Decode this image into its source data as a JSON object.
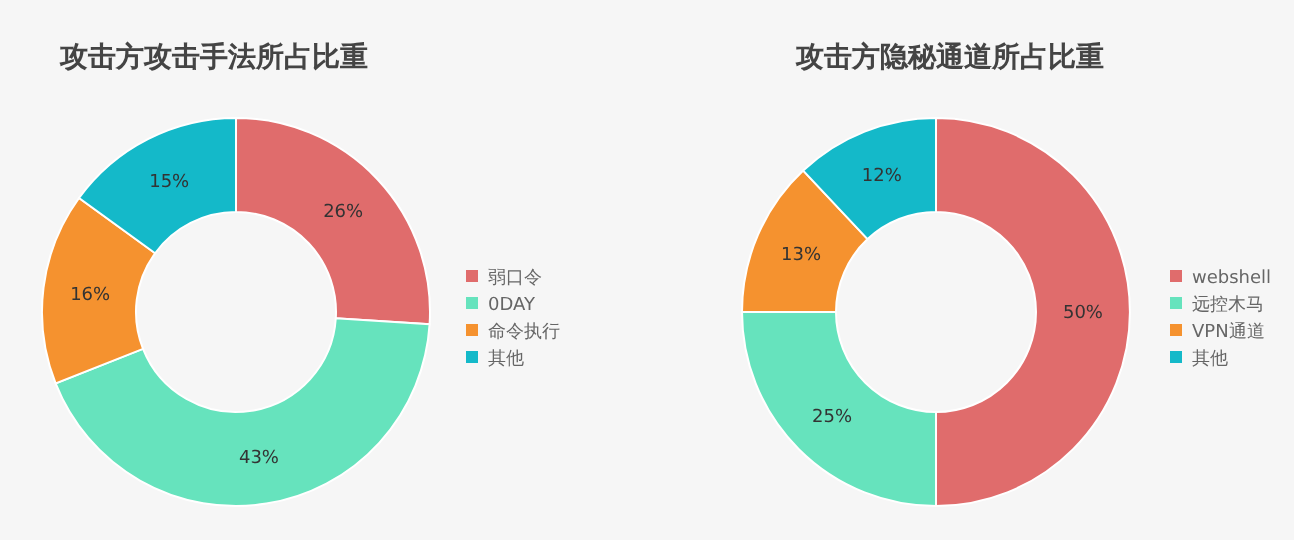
{
  "chart_data": [
    {
      "type": "donut",
      "title": "攻击方攻击手法所占比重",
      "categories": [
        "弱口令",
        "0DAY",
        "命令执行",
        "其他"
      ],
      "values": [
        26,
        43,
        16,
        15
      ],
      "value_labels": [
        "26%",
        "43%",
        "16%",
        "15%"
      ],
      "colors": [
        "#e06c6c",
        "#66e3bd",
        "#f5922f",
        "#14b9c9"
      ],
      "legend": "right"
    },
    {
      "type": "donut",
      "title": "攻击方隐秘通道所占比重",
      "categories": [
        "webshell",
        "远控木马",
        "VPN通道",
        "其他"
      ],
      "values": [
        50,
        25,
        13,
        12
      ],
      "value_labels": [
        "50%",
        "25%",
        "13%",
        "12%"
      ],
      "colors": [
        "#e06c6c",
        "#66e3bd",
        "#f5922f",
        "#14b9c9"
      ],
      "legend": "right"
    }
  ]
}
